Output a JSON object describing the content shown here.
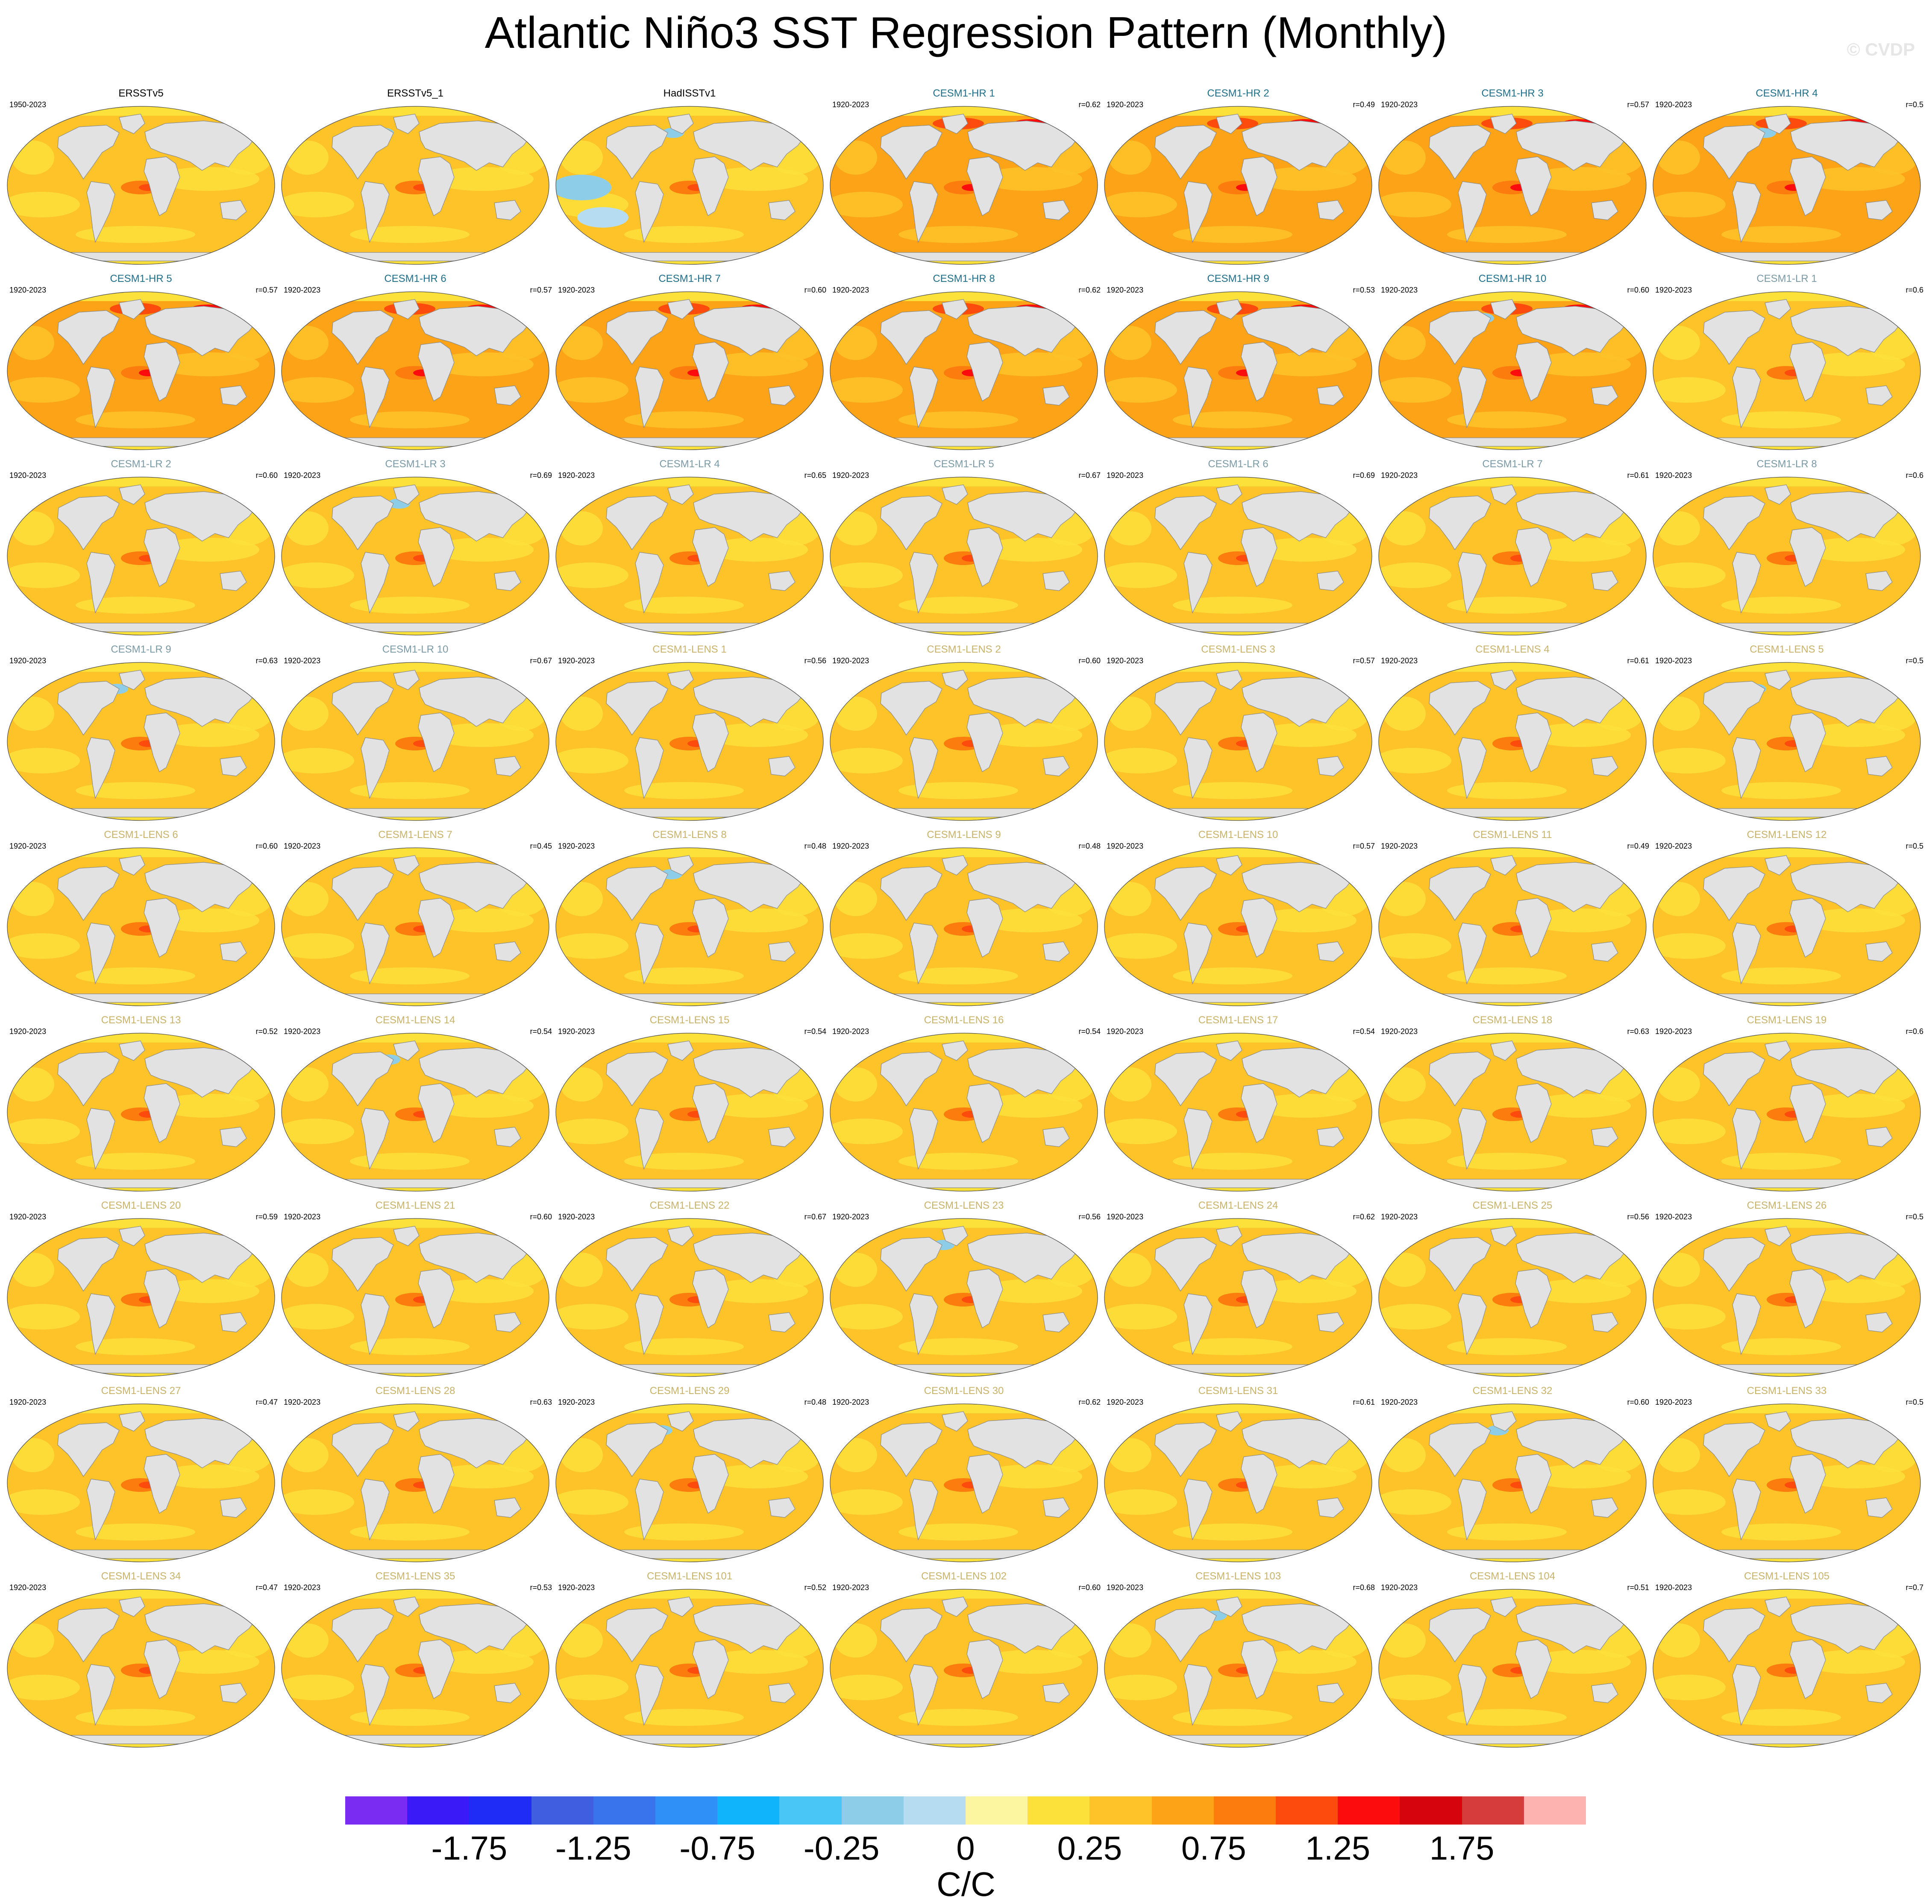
{
  "title": "Atlantic Niño3 SST Regression Pattern (Monthly)",
  "watermark": "© CVDP",
  "units": "C/C",
  "colorbar": {
    "colors": [
      "#7b2cf2",
      "#3a1af6",
      "#1f2cf5",
      "#3f5ee0",
      "#3a74ec",
      "#2f90f7",
      "#0fb4fb",
      "#4ac6f6",
      "#8ecde8",
      "#b5dcf0",
      "#fdf6a0",
      "#fde13b",
      "#fdc329",
      "#fca317",
      "#fc7d0e",
      "#fd4a0d",
      "#fc0c0c",
      "#d6050d",
      "#d73c3c",
      "#fdb3b0"
    ],
    "labels": [
      "-1.75",
      "-1.25",
      "-0.75",
      "-0.25",
      "0",
      "0.25",
      "0.75",
      "1.25",
      "1.75"
    ]
  },
  "panels": [
    {
      "title": "ERSSTv5",
      "years": "1950-2023",
      "r": "",
      "group": "obs"
    },
    {
      "title": "ERSSTv5_1",
      "years": "",
      "r": "",
      "group": "obs"
    },
    {
      "title": "HadISSTv1",
      "years": "",
      "r": "",
      "group": "obs"
    },
    {
      "title": "CESM1-HR 1",
      "years": "1920-2023",
      "r": "r=0.62",
      "group": "hr"
    },
    {
      "title": "CESM1-HR 2",
      "years": "1920-2023",
      "r": "r=0.49",
      "group": "hr"
    },
    {
      "title": "CESM1-HR 3",
      "years": "1920-2023",
      "r": "r=0.57",
      "group": "hr"
    },
    {
      "title": "CESM1-HR 4",
      "years": "1920-2023",
      "r": "r=0.5",
      "group": "hr"
    },
    {
      "title": "CESM1-HR 5",
      "years": "1920-2023",
      "r": "r=0.57",
      "group": "hr"
    },
    {
      "title": "CESM1-HR 6",
      "years": "1920-2023",
      "r": "r=0.57",
      "group": "hr"
    },
    {
      "title": "CESM1-HR 7",
      "years": "1920-2023",
      "r": "r=0.60",
      "group": "hr"
    },
    {
      "title": "CESM1-HR 8",
      "years": "1920-2023",
      "r": "r=0.62",
      "group": "hr"
    },
    {
      "title": "CESM1-HR 9",
      "years": "1920-2023",
      "r": "r=0.53",
      "group": "hr"
    },
    {
      "title": "CESM1-HR 10",
      "years": "1920-2023",
      "r": "r=0.60",
      "group": "hr"
    },
    {
      "title": "CESM1-LR 1",
      "years": "1920-2023",
      "r": "r=0.6",
      "group": "lr"
    },
    {
      "title": "CESM1-LR 2",
      "years": "1920-2023",
      "r": "r=0.60",
      "group": "lr"
    },
    {
      "title": "CESM1-LR 3",
      "years": "1920-2023",
      "r": "r=0.69",
      "group": "lr"
    },
    {
      "title": "CESM1-LR 4",
      "years": "1920-2023",
      "r": "r=0.65",
      "group": "lr"
    },
    {
      "title": "CESM1-LR 5",
      "years": "1920-2023",
      "r": "r=0.67",
      "group": "lr"
    },
    {
      "title": "CESM1-LR 6",
      "years": "1920-2023",
      "r": "r=0.69",
      "group": "lr"
    },
    {
      "title": "CESM1-LR 7",
      "years": "1920-2023",
      "r": "r=0.61",
      "group": "lr"
    },
    {
      "title": "CESM1-LR 8",
      "years": "1920-2023",
      "r": "r=0.6",
      "group": "lr"
    },
    {
      "title": "CESM1-LR 9",
      "years": "1920-2023",
      "r": "r=0.63",
      "group": "lr"
    },
    {
      "title": "CESM1-LR 10",
      "years": "1920-2023",
      "r": "r=0.67",
      "group": "lr"
    },
    {
      "title": "CESM1-LENS 1",
      "years": "1920-2023",
      "r": "r=0.56",
      "group": "lens"
    },
    {
      "title": "CESM1-LENS 2",
      "years": "1920-2023",
      "r": "r=0.60",
      "group": "lens"
    },
    {
      "title": "CESM1-LENS 3",
      "years": "1920-2023",
      "r": "r=0.57",
      "group": "lens"
    },
    {
      "title": "CESM1-LENS 4",
      "years": "1920-2023",
      "r": "r=0.61",
      "group": "lens"
    },
    {
      "title": "CESM1-LENS 5",
      "years": "1920-2023",
      "r": "r=0.5",
      "group": "lens"
    },
    {
      "title": "CESM1-LENS 6",
      "years": "1920-2023",
      "r": "r=0.60",
      "group": "lens"
    },
    {
      "title": "CESM1-LENS 7",
      "years": "1920-2023",
      "r": "r=0.45",
      "group": "lens"
    },
    {
      "title": "CESM1-LENS 8",
      "years": "1920-2023",
      "r": "r=0.48",
      "group": "lens"
    },
    {
      "title": "CESM1-LENS 9",
      "years": "1920-2023",
      "r": "r=0.48",
      "group": "lens"
    },
    {
      "title": "CESM1-LENS 10",
      "years": "1920-2023",
      "r": "r=0.57",
      "group": "lens"
    },
    {
      "title": "CESM1-LENS 11",
      "years": "1920-2023",
      "r": "r=0.49",
      "group": "lens"
    },
    {
      "title": "CESM1-LENS 12",
      "years": "1920-2023",
      "r": "r=0.5",
      "group": "lens"
    },
    {
      "title": "CESM1-LENS 13",
      "years": "1920-2023",
      "r": "r=0.52",
      "group": "lens"
    },
    {
      "title": "CESM1-LENS 14",
      "years": "1920-2023",
      "r": "r=0.54",
      "group": "lens"
    },
    {
      "title": "CESM1-LENS 15",
      "years": "1920-2023",
      "r": "r=0.54",
      "group": "lens"
    },
    {
      "title": "CESM1-LENS 16",
      "years": "1920-2023",
      "r": "r=0.54",
      "group": "lens"
    },
    {
      "title": "CESM1-LENS 17",
      "years": "1920-2023",
      "r": "r=0.54",
      "group": "lens"
    },
    {
      "title": "CESM1-LENS 18",
      "years": "1920-2023",
      "r": "r=0.63",
      "group": "lens"
    },
    {
      "title": "CESM1-LENS 19",
      "years": "1920-2023",
      "r": "r=0.6",
      "group": "lens"
    },
    {
      "title": "CESM1-LENS 20",
      "years": "1920-2023",
      "r": "r=0.59",
      "group": "lens"
    },
    {
      "title": "CESM1-LENS 21",
      "years": "1920-2023",
      "r": "r=0.60",
      "group": "lens"
    },
    {
      "title": "CESM1-LENS 22",
      "years": "1920-2023",
      "r": "r=0.67",
      "group": "lens"
    },
    {
      "title": "CESM1-LENS 23",
      "years": "1920-2023",
      "r": "r=0.56",
      "group": "lens"
    },
    {
      "title": "CESM1-LENS 24",
      "years": "1920-2023",
      "r": "r=0.62",
      "group": "lens"
    },
    {
      "title": "CESM1-LENS 25",
      "years": "1920-2023",
      "r": "r=0.56",
      "group": "lens"
    },
    {
      "title": "CESM1-LENS 26",
      "years": "1920-2023",
      "r": "r=0.5",
      "group": "lens"
    },
    {
      "title": "CESM1-LENS 27",
      "years": "1920-2023",
      "r": "r=0.47",
      "group": "lens"
    },
    {
      "title": "CESM1-LENS 28",
      "years": "1920-2023",
      "r": "r=0.63",
      "group": "lens"
    },
    {
      "title": "CESM1-LENS 29",
      "years": "1920-2023",
      "r": "r=0.48",
      "group": "lens"
    },
    {
      "title": "CESM1-LENS 30",
      "years": "1920-2023",
      "r": "r=0.62",
      "group": "lens"
    },
    {
      "title": "CESM1-LENS 31",
      "years": "1920-2023",
      "r": "r=0.61",
      "group": "lens"
    },
    {
      "title": "CESM1-LENS 32",
      "years": "1920-2023",
      "r": "r=0.60",
      "group": "lens"
    },
    {
      "title": "CESM1-LENS 33",
      "years": "1920-2023",
      "r": "r=0.5",
      "group": "lens"
    },
    {
      "title": "CESM1-LENS 34",
      "years": "1920-2023",
      "r": "r=0.47",
      "group": "lens"
    },
    {
      "title": "CESM1-LENS 35",
      "years": "1920-2023",
      "r": "r=0.53",
      "group": "lens"
    },
    {
      "title": "CESM1-LENS 101",
      "years": "1920-2023",
      "r": "r=0.52",
      "group": "lens"
    },
    {
      "title": "CESM1-LENS 102",
      "years": "1920-2023",
      "r": "r=0.60",
      "group": "lens"
    },
    {
      "title": "CESM1-LENS 103",
      "years": "1920-2023",
      "r": "r=0.68",
      "group": "lens"
    },
    {
      "title": "CESM1-LENS 104",
      "years": "1920-2023",
      "r": "r=0.51",
      "group": "lens"
    },
    {
      "title": "CESM1-LENS 105",
      "years": "1920-2023",
      "r": "r=0.7",
      "group": "lens"
    }
  ],
  "group_colors": {
    "obs": "#000000",
    "hr": "#1f6f8b",
    "lr": "#7a9aa6",
    "lens": "#c9b36a"
  }
}
